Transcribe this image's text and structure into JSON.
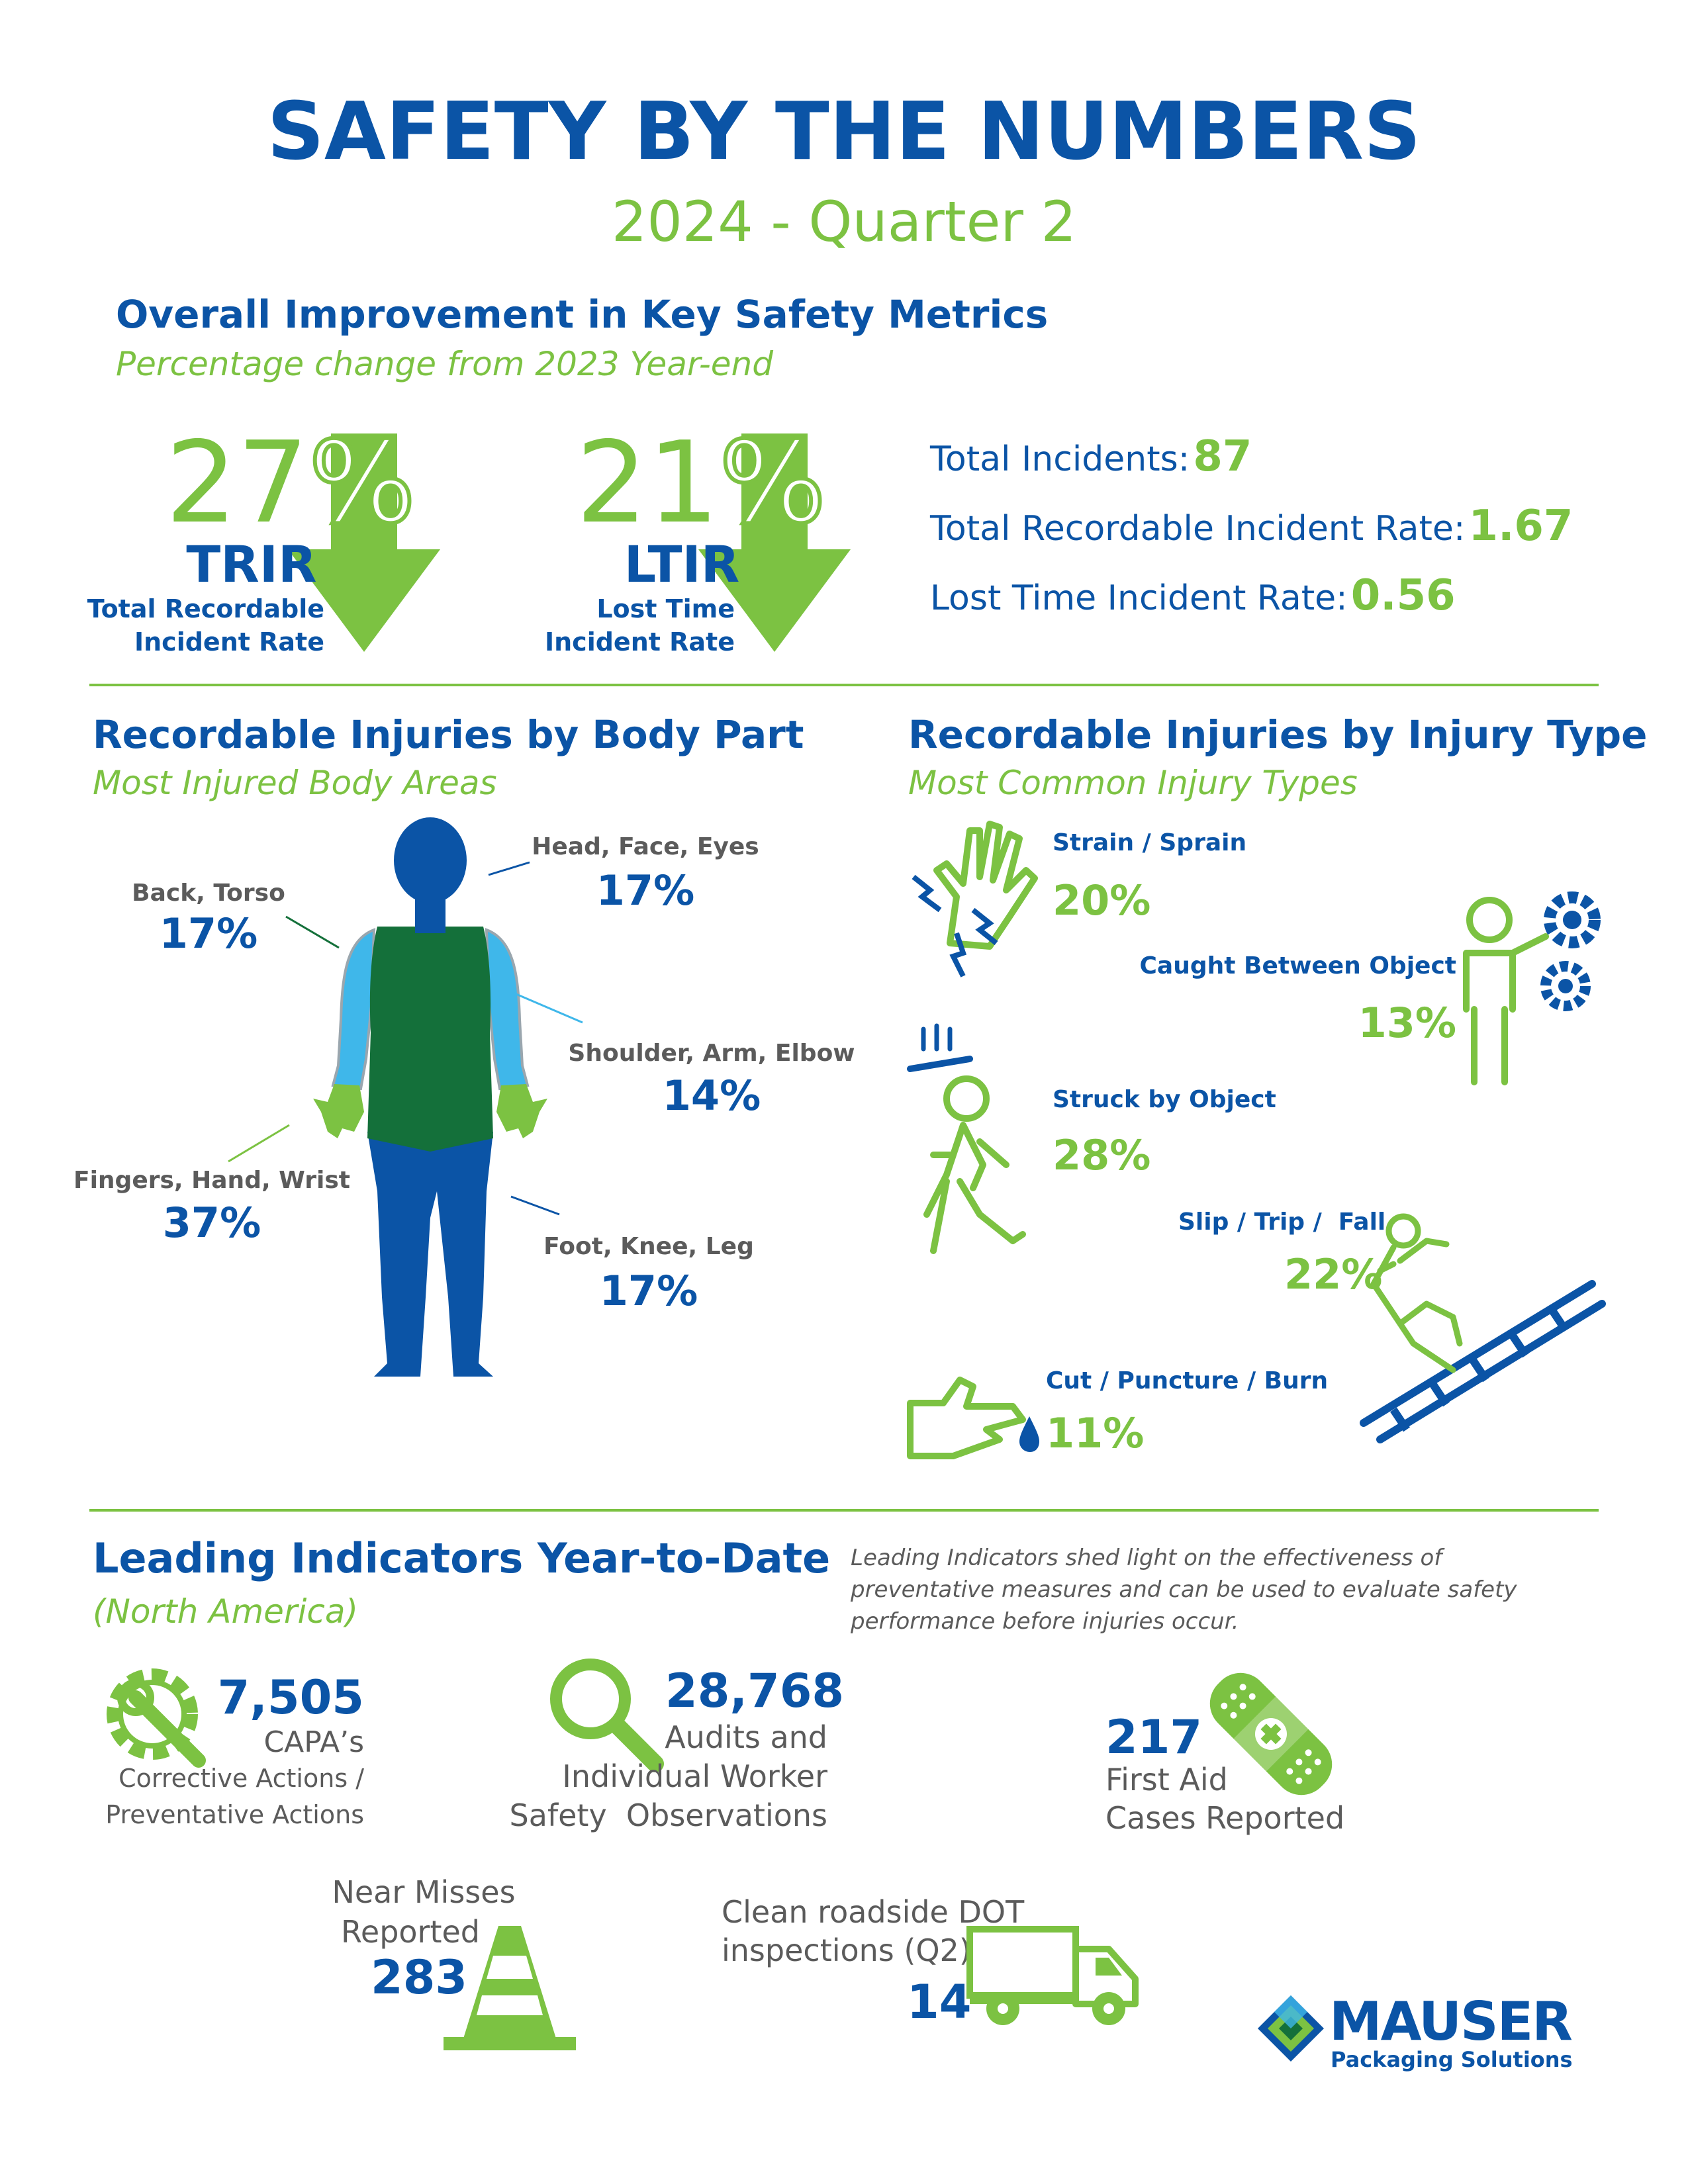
{
  "header": {
    "title": "SAFETY BY THE NUMBERS",
    "subtitle": "2024 - Quarter 2"
  },
  "overall": {
    "heading": "Overall Improvement in Key Safety Metrics",
    "subheading": "Percentage change from 2023 Year-end",
    "trir": {
      "percent_num": "27",
      "percent_sign": "%",
      "abbr": "TRIR",
      "label_line1": "Total Recordable",
      "label_line2": "Incident Rate"
    },
    "ltir": {
      "percent_num": "21",
      "percent_sign": "%",
      "abbr": "LTIR",
      "label_line1": "Lost Time",
      "label_line2": "Incident Rate"
    },
    "stats": [
      {
        "label": "Total Incidents:",
        "value": "87"
      },
      {
        "label": "Total Recordable Incident Rate:",
        "value": "1.67"
      },
      {
        "label": "Lost Time Incident Rate:",
        "value": "0.56"
      }
    ]
  },
  "body_part": {
    "heading": "Recordable Injuries by Body Part",
    "subheading": "Most Injured Body Areas",
    "items": [
      {
        "label": "Back, Torso",
        "value": "17%"
      },
      {
        "label": "Head, Face, Eyes",
        "value": "17%"
      },
      {
        "label": "Shoulder, Arm, Elbow",
        "value": "14%"
      },
      {
        "label": "Fingers, Hand, Wrist",
        "value": "37%"
      },
      {
        "label": "Foot, Knee, Leg",
        "value": "17%"
      }
    ]
  },
  "injury_type": {
    "heading": "Recordable Injuries by Injury Type",
    "subheading": "Most Common Injury Types",
    "items": [
      {
        "label": "Strain / Sprain",
        "value": "20%"
      },
      {
        "label": "Caught Between Object",
        "value": "13%"
      },
      {
        "label": "Struck by Object",
        "value": "28%"
      },
      {
        "label": "Slip / Trip /  Fall",
        "value": "22%"
      },
      {
        "label": "Cut / Puncture / Burn",
        "value": "11%"
      }
    ]
  },
  "leading": {
    "heading": "Leading Indicators Year-to-Date",
    "subheading": "(North America)",
    "note_line1": "Leading Indicators shed light on the effectiveness of",
    "note_line2": "preventative measures and can be used to evaluate safety",
    "note_line3": "performance before injuries occur.",
    "capa": {
      "value": "7,505",
      "line1": "CAPA’s",
      "line2": "Corrective Actions /",
      "line3": "Preventative Actions"
    },
    "audits": {
      "value": "28,768",
      "line1": "Audits and",
      "line2": "Individual Worker",
      "line3": "Safety  Observations"
    },
    "first_aid": {
      "value": "217",
      "line1": "First Aid",
      "line2": "Cases Reported"
    },
    "near_miss": {
      "line1": "Near Misses",
      "line2": "Reported",
      "value": "283"
    },
    "dot": {
      "line1": "Clean roadside DOT",
      "line2": "inspections (Q2)",
      "value": "14"
    }
  },
  "logo": {
    "name": "MAUSER",
    "tagline": "Packaging Solutions"
  },
  "colors": {
    "blue": "#0b54a6",
    "green": "#7cc242",
    "light_blue": "#3fb7ea",
    "dark_green": "#14703a",
    "gray": "#5b5b5b"
  }
}
